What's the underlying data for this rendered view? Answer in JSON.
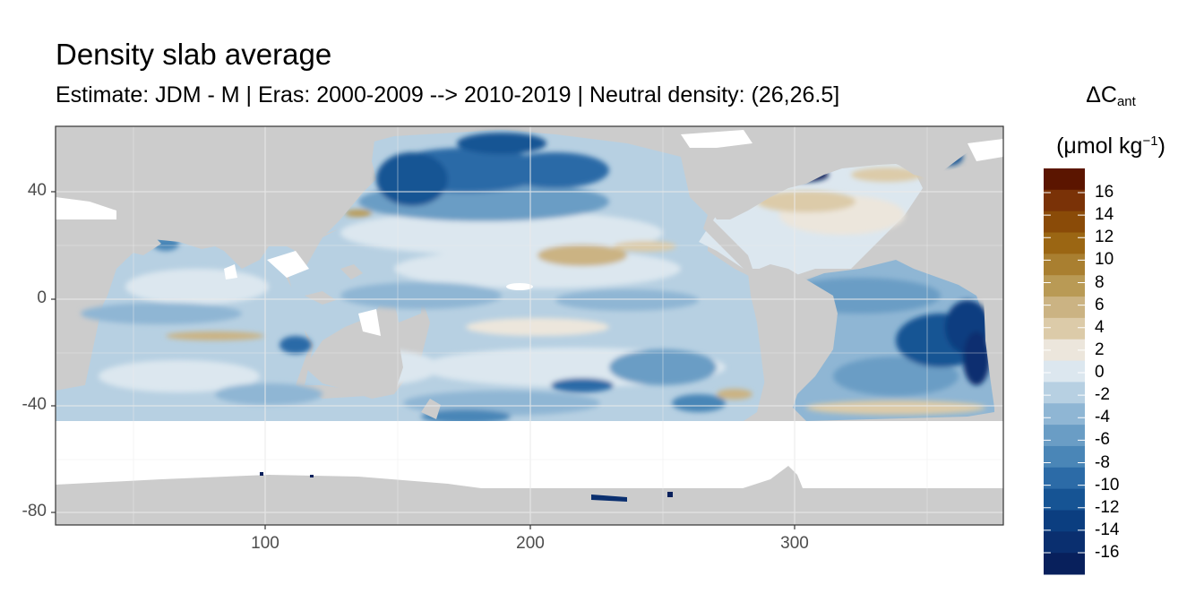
{
  "title": "Density slab average",
  "subtitle": "Estimate: JDM - M | Eras: 2000-2009 --> 2010-2019 | Neutral density: (26,26.5]",
  "legend": {
    "symbol": "ΔC",
    "subscript": "ant",
    "unit_prefix": "(μmol kg",
    "unit_exponent": "−1",
    "unit_suffix": ")",
    "labels": [
      "16",
      "14",
      "12",
      "10",
      "8",
      "6",
      "4",
      "2",
      "0",
      "-2",
      "-4",
      "-6",
      "-8",
      "-10",
      "-12",
      "-14",
      "-16"
    ],
    "colors": [
      "#5b1500",
      "#7a3207",
      "#8a4b08",
      "#9b6613",
      "#a97f30",
      "#b99a55",
      "#cbb383",
      "#dccba9",
      "#ece6dc",
      "#dce7ef",
      "#b7d0e2",
      "#8fb6d4",
      "#6a9dc5",
      "#4a86b7",
      "#2c6ba7",
      "#165494",
      "#0b3e80",
      "#0a2f6f",
      "#08205c"
    ]
  },
  "axes": {
    "x_ticks": [
      "100",
      "200",
      "300"
    ],
    "y_ticks": [
      "40",
      "0",
      "-40",
      "-80"
    ]
  },
  "colors": {
    "land": "#cccccc",
    "no_data": "#ffffff",
    "grid": "#ebebeb",
    "panel_border": "#333333"
  }
}
